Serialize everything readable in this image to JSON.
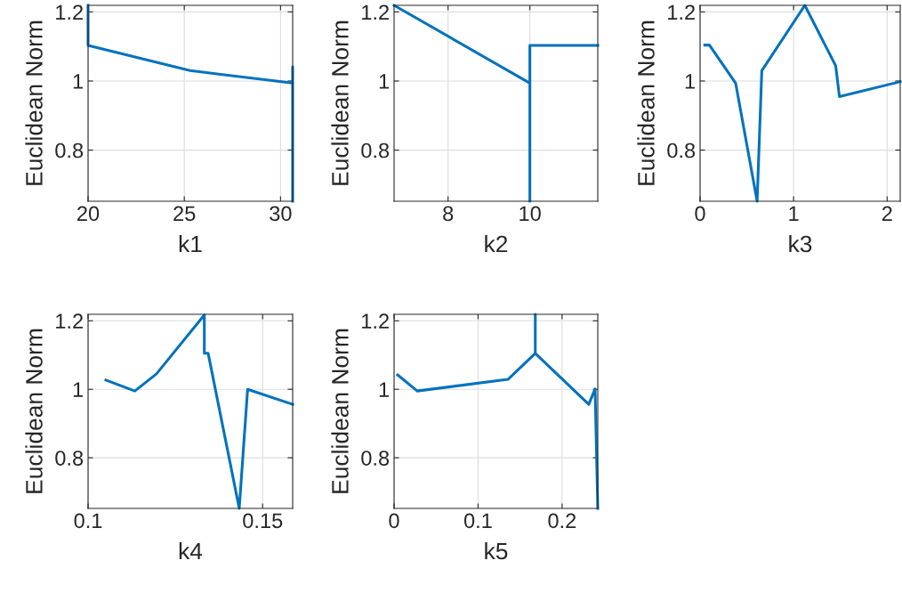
{
  "chart_data": [
    {
      "type": "line",
      "xlabel": "k1",
      "ylabel": "Euclidean Norm",
      "grid": true,
      "xlim": [
        20,
        30.63
      ],
      "xticks": [
        20,
        25,
        30
      ],
      "ylim": [
        0.652,
        1.219
      ],
      "yticks": [
        0.8,
        1,
        1.2
      ],
      "series": [
        {
          "color": "#0072bd",
          "x": [
            20,
            20,
            25.3,
            30.63,
            30.63,
            30.63
          ],
          "values": [
            1.219,
            1.103,
            1.03,
            0.994,
            1.041,
            0.652
          ]
        }
      ]
    },
    {
      "type": "line",
      "xlabel": "k2",
      "ylabel": "Euclidean Norm",
      "grid": true,
      "xlim": [
        6.68,
        11.66
      ],
      "xticks": [
        8,
        10
      ],
      "ylim": [
        0.652,
        1.219
      ],
      "yticks": [
        0.8,
        1,
        1.2
      ],
      "series": [
        {
          "color": "#0072bd",
          "x": [
            6.68,
            10,
            10,
            10,
            11.66
          ],
          "values": [
            1.219,
            0.994,
            0.652,
            1.103,
            1.103
          ]
        }
      ]
    },
    {
      "type": "line",
      "xlabel": "k3",
      "ylabel": "Euclidean Norm",
      "grid": true,
      "xlim": [
        0,
        2.14
      ],
      "xticks": [
        0,
        1,
        2
      ],
      "ylim": [
        0.652,
        1.219
      ],
      "yticks": [
        0.8,
        1,
        1.2
      ],
      "series": [
        {
          "color": "#0072bd",
          "x": [
            0.05,
            0.1,
            0.38,
            0.61,
            0.66,
            1.12,
            1.45,
            1.49,
            2.14
          ],
          "values": [
            1.104,
            1.104,
            0.994,
            0.652,
            1.03,
            1.219,
            1.044,
            0.955,
            0.998
          ]
        }
      ]
    },
    {
      "type": "line",
      "xlabel": "k4",
      "ylabel": "Euclidean Norm",
      "grid": true,
      "xlim": [
        0.1,
        0.1586
      ],
      "xticks": [
        0.1,
        0.15
      ],
      "ylim": [
        0.652,
        1.219
      ],
      "yticks": [
        0.8,
        1,
        1.2
      ],
      "series": [
        {
          "color": "#0072bd",
          "x": [
            0.1051,
            0.1134,
            0.1196,
            0.1333,
            0.1333,
            0.1344,
            0.1433,
            0.1457,
            0.1586
          ],
          "values": [
            1.027,
            0.995,
            1.045,
            1.217,
            1.105,
            1.105,
            0.652,
            1.0,
            0.956
          ]
        }
      ]
    },
    {
      "type": "line",
      "xlabel": "k5",
      "ylabel": "Euclidean Norm",
      "grid": true,
      "xlim": [
        0,
        0.2425
      ],
      "xticks": [
        0,
        0.1,
        0.2
      ],
      "ylim": [
        0.652,
        1.219
      ],
      "yticks": [
        0.8,
        1,
        1.2
      ],
      "series": [
        {
          "color": "#0072bd",
          "x": [
            0.0042,
            0.0276,
            0.1356,
            0.1681,
            0.1681,
            0.1681,
            0.2318,
            0.2393,
            0.2425
          ],
          "values": [
            1.042,
            0.995,
            1.029,
            1.105,
            1.219,
            1.105,
            0.956,
            1.001,
            0.652
          ]
        }
      ]
    }
  ]
}
